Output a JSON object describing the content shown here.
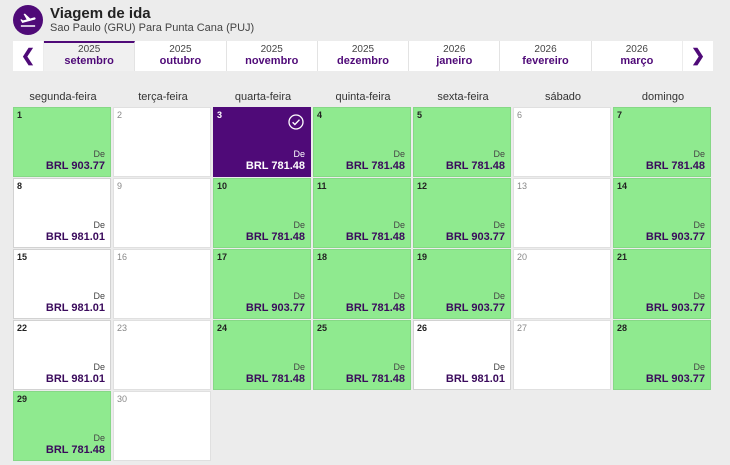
{
  "header": {
    "title": "Viagem de ida",
    "route": "Sao Paulo (GRU) Para Punta Cana (PUJ)",
    "icon": "airplane-takeoff-icon"
  },
  "colors": {
    "brand": "#4f0a78",
    "available": "#8fea8f"
  },
  "months": [
    {
      "year": "2025",
      "name": "setembro",
      "selected": true
    },
    {
      "year": "2025",
      "name": "outubro"
    },
    {
      "year": "2025",
      "name": "novembro"
    },
    {
      "year": "2025",
      "name": "dezembro"
    },
    {
      "year": "2026",
      "name": "janeiro"
    },
    {
      "year": "2026",
      "name": "fevereiro"
    },
    {
      "year": "2026",
      "name": "março"
    }
  ],
  "weekdays": [
    "segunda-feira",
    "terça-feira",
    "quarta-feira",
    "quinta-feira",
    "sexta-feira",
    "sábado",
    "domingo"
  ],
  "days": [
    {
      "day": "1",
      "from": "De",
      "price": "BRL 903.77",
      "green": true
    },
    {
      "day": "2"
    },
    {
      "day": "3",
      "from": "De",
      "price": "BRL 781.48",
      "selected": true
    },
    {
      "day": "4",
      "from": "De",
      "price": "BRL 781.48",
      "green": true
    },
    {
      "day": "5",
      "from": "De",
      "price": "BRL 781.48",
      "green": true
    },
    {
      "day": "6"
    },
    {
      "day": "7",
      "from": "De",
      "price": "BRL 781.48",
      "green": true
    },
    {
      "day": "8",
      "from": "De",
      "price": "BRL 981.01"
    },
    {
      "day": "9"
    },
    {
      "day": "10",
      "from": "De",
      "price": "BRL 781.48",
      "green": true
    },
    {
      "day": "11",
      "from": "De",
      "price": "BRL 781.48",
      "green": true
    },
    {
      "day": "12",
      "from": "De",
      "price": "BRL 903.77",
      "green": true
    },
    {
      "day": "13"
    },
    {
      "day": "14",
      "from": "De",
      "price": "BRL 903.77",
      "green": true
    },
    {
      "day": "15",
      "from": "De",
      "price": "BRL 981.01"
    },
    {
      "day": "16"
    },
    {
      "day": "17",
      "from": "De",
      "price": "BRL 903.77",
      "green": true
    },
    {
      "day": "18",
      "from": "De",
      "price": "BRL 781.48",
      "green": true
    },
    {
      "day": "19",
      "from": "De",
      "price": "BRL 903.77",
      "green": true
    },
    {
      "day": "20"
    },
    {
      "day": "21",
      "from": "De",
      "price": "BRL 903.77",
      "green": true
    },
    {
      "day": "22",
      "from": "De",
      "price": "BRL 981.01"
    },
    {
      "day": "23"
    },
    {
      "day": "24",
      "from": "De",
      "price": "BRL 781.48",
      "green": true
    },
    {
      "day": "25",
      "from": "De",
      "price": "BRL 781.48",
      "green": true
    },
    {
      "day": "26",
      "from": "De",
      "price": "BRL 981.01"
    },
    {
      "day": "27"
    },
    {
      "day": "28",
      "from": "De",
      "price": "BRL 903.77",
      "green": true
    },
    {
      "day": "29",
      "from": "De",
      "price": "BRL 781.48",
      "green": true
    },
    {
      "day": "30"
    }
  ]
}
